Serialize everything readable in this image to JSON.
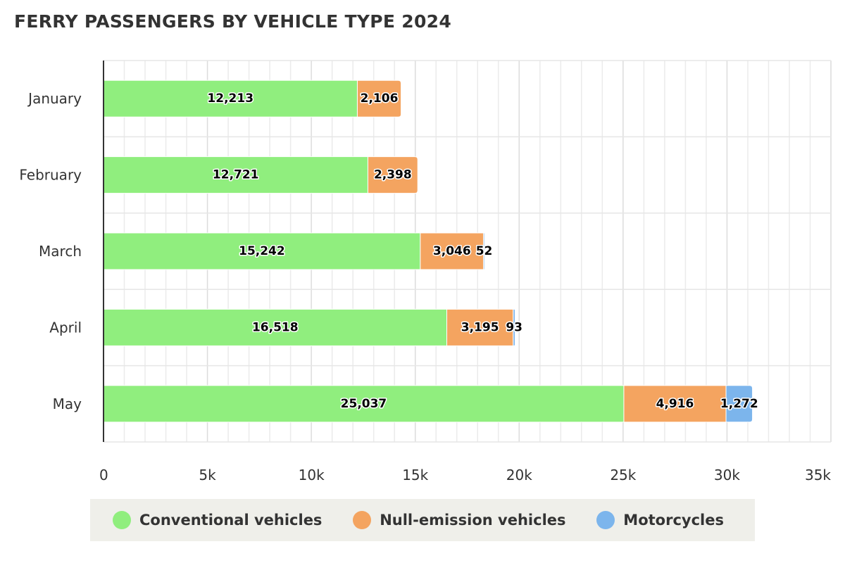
{
  "chart_data": {
    "type": "bar",
    "orientation": "horizontal",
    "stacked": true,
    "title": "FERRY PASSENGERS BY VEHICLE TYPE 2024",
    "categories": [
      "January",
      "February",
      "March",
      "April",
      "May"
    ],
    "series": [
      {
        "name": "Conventional vehicles",
        "color": "#90ee7e",
        "values": [
          12213,
          12721,
          15242,
          16518,
          25037
        ],
        "labels": [
          "12,213",
          "12,721",
          "15,242",
          "16,518",
          "25,037"
        ]
      },
      {
        "name": "Null-emission vehicles",
        "color": "#f4a460",
        "values": [
          2106,
          2398,
          3046,
          3195,
          4916
        ],
        "labels": [
          "2,106",
          "2,398",
          "3,046",
          "3,195",
          "4,916"
        ]
      },
      {
        "name": "Motorcycles",
        "color": "#7cb5ec",
        "values": [
          0,
          0,
          52,
          93,
          1272
        ],
        "labels": [
          "",
          "",
          "52",
          "93",
          "1,272"
        ]
      }
    ],
    "xlim": [
      0,
      35000
    ],
    "xticks": [
      0,
      5000,
      10000,
      15000,
      20000,
      25000,
      30000,
      35000
    ],
    "xtick_labels": [
      "0",
      "5k",
      "10k",
      "15k",
      "20k",
      "25k",
      "30k",
      "35k"
    ],
    "grid": true,
    "legend_position": "bottom"
  }
}
